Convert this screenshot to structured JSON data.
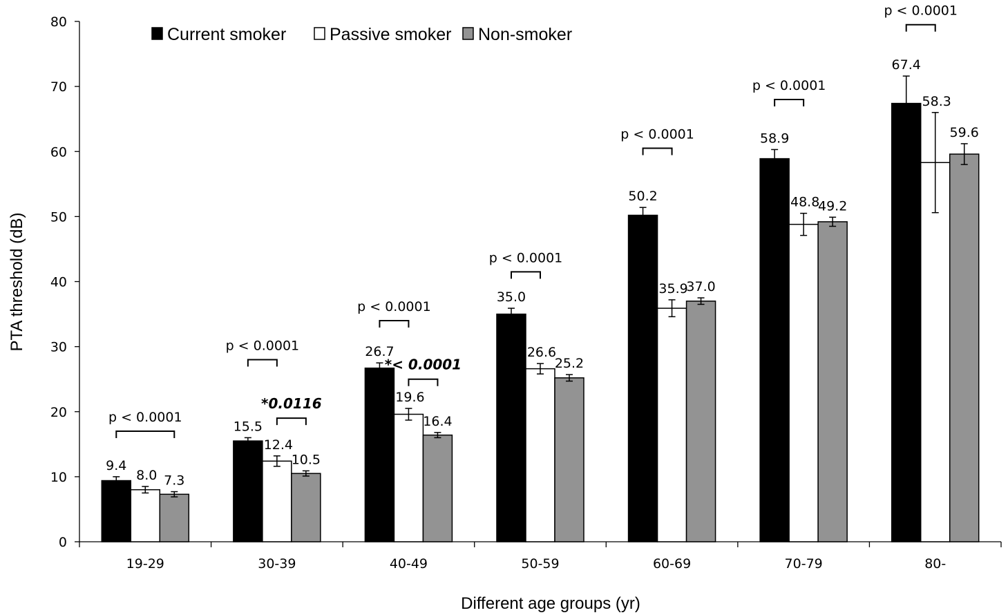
{
  "chart_data": {
    "type": "bar",
    "title": "",
    "xlabel": "Different age groups (yr)",
    "ylabel": "PTA threshold (dB)",
    "ylim": [
      0,
      80
    ],
    "yticks": [
      "0",
      "10",
      "20",
      "30",
      "40",
      "50",
      "60",
      "70",
      "80"
    ],
    "grid": false,
    "legend_position": "top-left",
    "categories": [
      "19-29",
      "30-39",
      "40-49",
      "50-59",
      "60-69",
      "70-79",
      "80-"
    ],
    "series": [
      {
        "name": "Current smoker",
        "color": "#000000",
        "values": [
          9.4,
          15.5,
          26.7,
          35.0,
          50.2,
          58.9,
          67.4
        ],
        "labels": [
          "9.4",
          "15.5",
          "26.7",
          "35.0",
          "50.2",
          "58.9",
          "67.4"
        ],
        "error": [
          0.6,
          0.5,
          0.8,
          0.9,
          1.2,
          1.4,
          4.2
        ]
      },
      {
        "name": "Passive smoker",
        "color": "#ffffff",
        "values": [
          8.0,
          12.4,
          19.6,
          26.6,
          35.9,
          48.8,
          58.3
        ],
        "labels": [
          "8.0",
          "12.4",
          "19.6",
          "26.6",
          "35.9",
          "48.8",
          "58.3"
        ],
        "error": [
          0.5,
          0.8,
          0.9,
          0.8,
          1.3,
          1.7,
          7.7
        ]
      },
      {
        "name": "Non-smoker",
        "color": "#939393",
        "values": [
          7.3,
          10.5,
          16.4,
          25.2,
          37.0,
          49.2,
          59.6
        ],
        "labels": [
          "7.3",
          "10.5",
          "16.4",
          "25.2",
          "37.0",
          "49.2",
          "59.6"
        ],
        "error": [
          0.4,
          0.4,
          0.4,
          0.5,
          0.5,
          0.7,
          1.6
        ]
      }
    ],
    "annotations": [
      {
        "category": 0,
        "from_series": 0,
        "to_series": 2,
        "y": 17,
        "text": "p < 0.0001",
        "prefix": "",
        "style": "normal"
      },
      {
        "category": 1,
        "from_series": 0,
        "to_series": 1,
        "y": 28,
        "text": "p < 0.0001",
        "prefix": "",
        "style": "normal"
      },
      {
        "category": 1,
        "from_series": 1,
        "to_series": 2,
        "y": 19,
        "text": "0.0116",
        "prefix": "*",
        "style": "bold-italic"
      },
      {
        "category": 2,
        "from_series": 0,
        "to_series": 1,
        "y": 34,
        "text": "p < 0.0001",
        "prefix": "",
        "style": "normal"
      },
      {
        "category": 2,
        "from_series": 1,
        "to_series": 2,
        "y": 25,
        "text": "< 0.0001",
        "prefix": "*",
        "style": "bold-italic"
      },
      {
        "category": 3,
        "from_series": 0,
        "to_series": 1,
        "y": 41.5,
        "text": "p < 0.0001",
        "prefix": "",
        "style": "normal"
      },
      {
        "category": 4,
        "from_series": 0,
        "to_series": 1,
        "y": 60.5,
        "text": "p < 0.0001",
        "prefix": "",
        "style": "normal"
      },
      {
        "category": 5,
        "from_series": 0,
        "to_series": 1,
        "y": 68,
        "text": "p < 0.0001",
        "prefix": "",
        "style": "normal"
      },
      {
        "category": 6,
        "from_series": 0,
        "to_series": 1,
        "y": 79.5,
        "text": "p < 0.0001",
        "prefix": "",
        "style": "normal"
      }
    ]
  }
}
